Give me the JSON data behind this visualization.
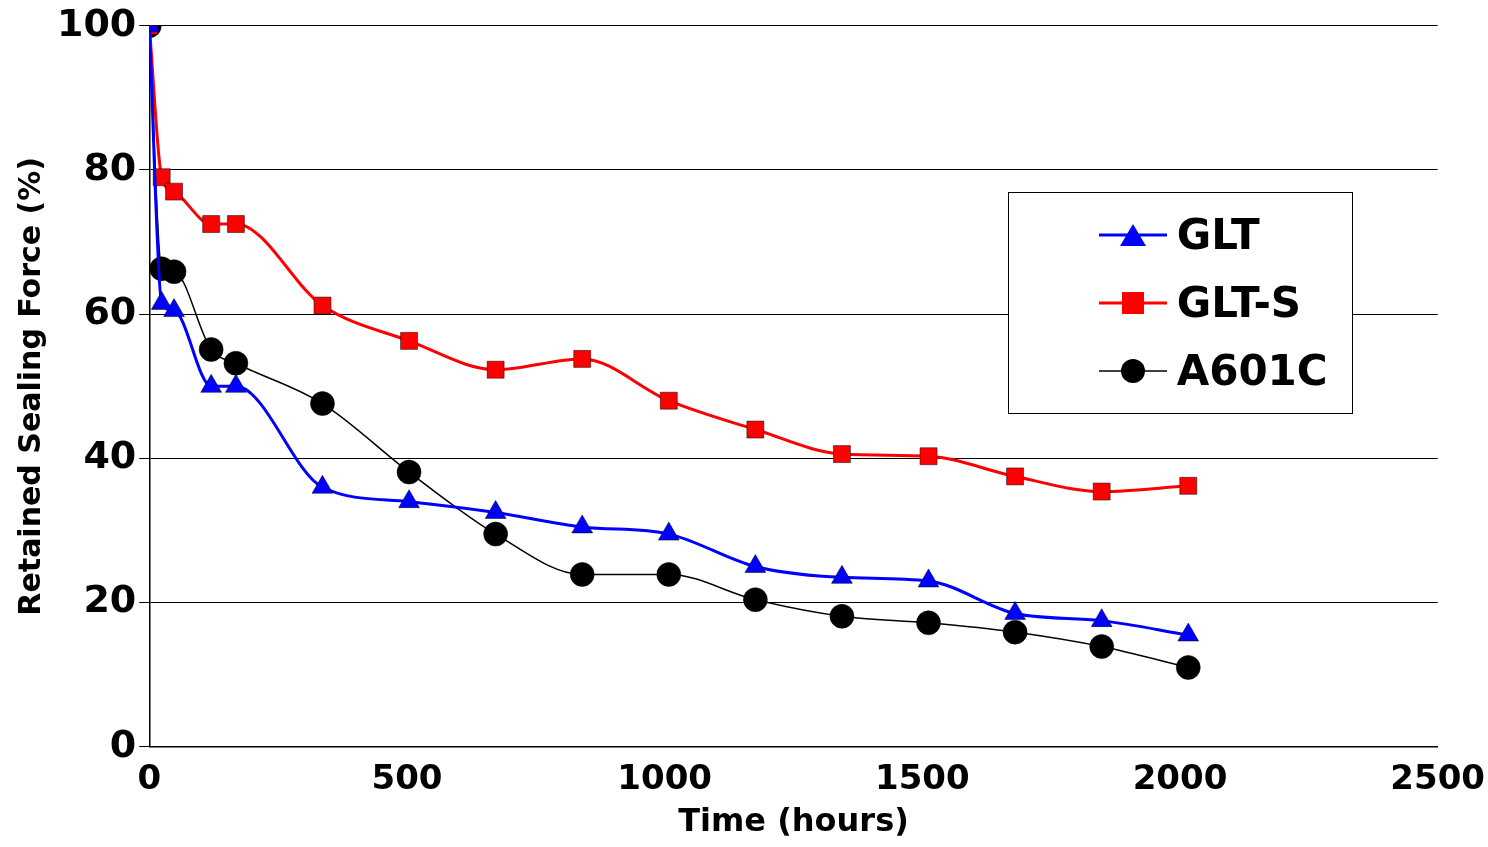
{
  "chart_data": {
    "type": "line",
    "xlabel": "Time (hours)",
    "ylabel": "Retained Sealing Force (%)",
    "x": [
      0,
      24,
      48,
      120,
      168,
      336,
      504,
      672,
      840,
      1008,
      1176,
      1344,
      1512,
      1680,
      1848,
      2016
    ],
    "xlim": [
      0,
      2500
    ],
    "xticks": [
      0,
      500,
      1000,
      1500,
      2000,
      2500
    ],
    "ylim": [
      0,
      100
    ],
    "yticks": [
      0,
      20,
      40,
      60,
      80,
      100
    ],
    "grid": "y",
    "legend": "top right",
    "series": [
      {
        "name": "GLT",
        "color": "#0000ff",
        "marker": "triangle",
        "values": [
          100,
          61.5,
          60.5,
          50,
          50,
          36,
          34,
          32.5,
          30.5,
          29.5,
          25,
          23.5,
          23,
          18.5,
          17.5,
          15.5
        ]
      },
      {
        "name": "GLT-S",
        "color": "#ff0000",
        "marker": "square",
        "values": [
          100,
          79,
          77,
          72.5,
          72.5,
          61.2,
          56.3,
          52.3,
          53.8,
          48,
          44,
          40.6,
          40.3,
          37.5,
          35.4,
          36.2
        ]
      },
      {
        "name": "A601C",
        "color": "#000000",
        "marker": "circle",
        "values": [
          100,
          66.3,
          65.9,
          55.1,
          53.2,
          47.6,
          38.1,
          29.5,
          23.9,
          23.9,
          20.4,
          18.1,
          17.2,
          15.9,
          13.9,
          11
        ]
      }
    ]
  }
}
